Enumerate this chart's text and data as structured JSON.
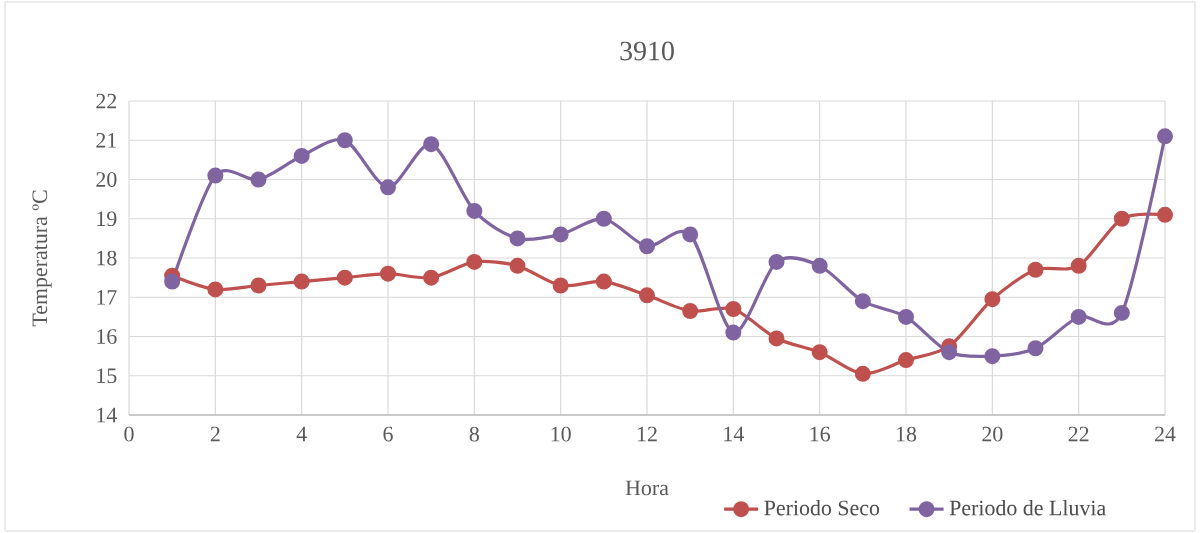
{
  "chart_data": {
    "type": "line",
    "title": "3910",
    "xlabel": "Hora",
    "ylabel": "Temperatura ºC",
    "x": [
      1,
      2,
      3,
      4,
      5,
      6,
      7,
      8,
      9,
      10,
      11,
      12,
      13,
      14,
      15,
      16,
      17,
      18,
      19,
      20,
      21,
      22,
      23,
      24
    ],
    "series": [
      {
        "name": "Periodo Seco",
        "color": "#c0504d",
        "values": [
          17.55,
          17.2,
          17.3,
          17.4,
          17.5,
          17.6,
          17.5,
          17.9,
          17.8,
          17.3,
          17.4,
          17.05,
          16.65,
          16.7,
          15.95,
          15.6,
          15.05,
          15.4,
          15.75,
          16.95,
          17.7,
          17.8,
          19.0,
          19.1
        ]
      },
      {
        "name": "Periodo de Lluvia",
        "color": "#8064a2",
        "values": [
          17.4,
          20.1,
          20.0,
          20.6,
          21.0,
          19.8,
          20.9,
          19.2,
          18.5,
          18.6,
          19.0,
          18.3,
          18.6,
          16.1,
          17.9,
          17.8,
          16.9,
          16.5,
          15.6,
          15.5,
          15.7,
          16.5,
          16.6,
          21.1
        ]
      }
    ],
    "xlim": [
      0,
      24
    ],
    "xticks": [
      0,
      2,
      4,
      6,
      8,
      10,
      12,
      14,
      16,
      18,
      20,
      22,
      24
    ],
    "ylim": [
      14,
      22
    ],
    "yticks": [
      14,
      15,
      16,
      17,
      18,
      19,
      20,
      21,
      22
    ],
    "grid": true,
    "legend": "bottom",
    "marker": "circle",
    "line_style": "solid"
  }
}
